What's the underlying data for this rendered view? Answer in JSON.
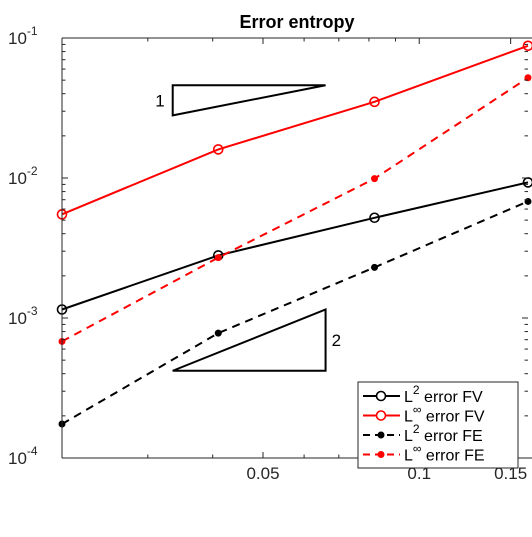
{
  "chart_data": {
    "type": "line",
    "title": "Error entropy",
    "xlabel": "",
    "ylabel": "",
    "x_scale": "log",
    "y_scale": "log",
    "xlim": [
      0.0205,
      0.162
    ],
    "ylim": [
      0.0001,
      0.1
    ],
    "grid": false,
    "legend_position": "bottom-right",
    "x_ticks": [
      {
        "value": 0.05,
        "label": "0.05"
      },
      {
        "value": 0.1,
        "label": "0.1"
      },
      {
        "value": 0.15,
        "label": "0.15"
      }
    ],
    "y_ticks": [
      {
        "value": 0.0001,
        "base": "10",
        "exp": "-4"
      },
      {
        "value": 0.001,
        "base": "10",
        "exp": "-3"
      },
      {
        "value": 0.01,
        "base": "10",
        "exp": "-2"
      },
      {
        "value": 0.1,
        "base": "10",
        "exp": "-1"
      }
    ],
    "series": [
      {
        "name_base": "L",
        "name_sup": "2",
        "name_rest": " error FV",
        "color": "#000000",
        "line_style": "solid",
        "marker": "open-circle",
        "x": [
          0.0205,
          0.041,
          0.082,
          0.162
        ],
        "values": [
          0.00115,
          0.0028,
          0.0052,
          0.0093
        ]
      },
      {
        "name_base": "L",
        "name_sup": "∞",
        "name_rest": " error FV",
        "color": "#ff0000",
        "line_style": "solid",
        "marker": "open-circle",
        "x": [
          0.0205,
          0.041,
          0.082,
          0.162
        ],
        "values": [
          0.0055,
          0.016,
          0.035,
          0.088
        ]
      },
      {
        "name_base": "L",
        "name_sup": "2",
        "name_rest": " error FE",
        "color": "#000000",
        "line_style": "dashed",
        "marker": "filled-dot",
        "x": [
          0.0205,
          0.041,
          0.082,
          0.162
        ],
        "values": [
          0.000175,
          0.00078,
          0.0023,
          0.0068
        ]
      },
      {
        "name_base": "L",
        "name_sup": "∞",
        "name_rest": " error FE",
        "color": "#ff0000",
        "line_style": "dashed",
        "marker": "filled-dot",
        "x": [
          0.0205,
          0.041,
          0.082,
          0.162
        ],
        "values": [
          0.00068,
          0.0027,
          0.0099,
          0.052
        ]
      }
    ],
    "annotations": [
      {
        "type": "slope-triangle",
        "label": "1",
        "x": [
          0.0335,
          0.066
        ],
        "y": [
          0.028,
          0.046
        ],
        "label_side": "left"
      },
      {
        "type": "slope-triangle",
        "label": "2",
        "x": [
          0.0335,
          0.066
        ],
        "y": [
          0.00042,
          0.00115
        ],
        "label_side": "right"
      }
    ]
  }
}
